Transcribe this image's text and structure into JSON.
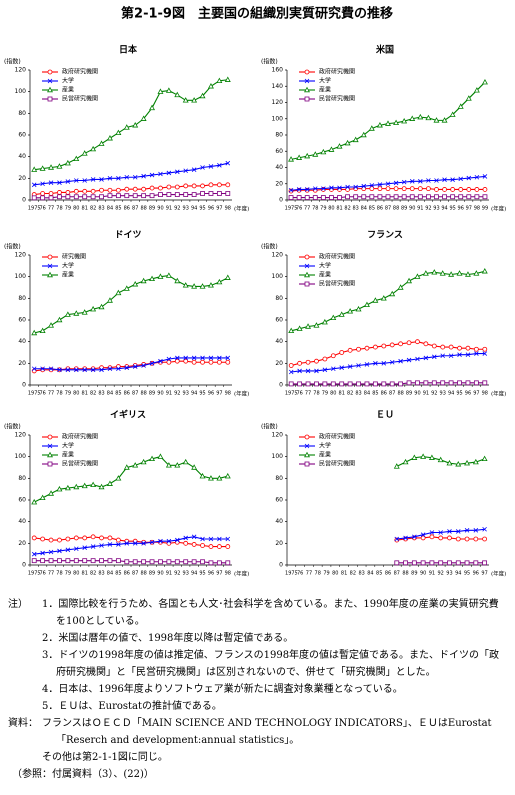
{
  "title": "第2-1-9図　主要国の組織別実質研究費の推移",
  "chart_data": [
    {
      "type": "line",
      "title": "日本",
      "y_label": "(指数)",
      "x_label": "(年度)",
      "categories": [
        "1975",
        "76",
        "77",
        "78",
        "79",
        "80",
        "81",
        "82",
        "83",
        "84",
        "85",
        "86",
        "87",
        "88",
        "89",
        "90",
        "91",
        "92",
        "93",
        "94",
        "95",
        "96",
        "97",
        "98"
      ],
      "ylim": [
        0,
        120
      ],
      "yticks": [
        0,
        20,
        40,
        60,
        80,
        100,
        120
      ],
      "series": [
        {
          "name": "政府研究機関",
          "color": "#ff0000",
          "marker": "circle",
          "values": [
            5,
            6,
            6,
            7,
            7,
            8,
            8,
            8,
            9,
            9,
            9,
            10,
            10,
            10,
            11,
            11,
            12,
            12,
            13,
            13,
            13,
            14,
            14,
            14
          ]
        },
        {
          "name": "大学",
          "color": "#0000ff",
          "marker": "cross",
          "values": [
            14,
            15,
            16,
            16,
            17,
            18,
            18,
            19,
            19,
            20,
            20,
            21,
            21,
            22,
            23,
            24,
            25,
            26,
            27,
            28,
            30,
            31,
            32,
            34
          ]
        },
        {
          "name": "産業",
          "color": "#008000",
          "marker": "triangle",
          "values": [
            28,
            29,
            30,
            31,
            34,
            38,
            43,
            47,
            52,
            57,
            62,
            67,
            69,
            75,
            85,
            100,
            101,
            97,
            92,
            92,
            96,
            105,
            110,
            111
          ]
        },
        {
          "name": "民営研究機関",
          "color": "#800080",
          "marker": "square",
          "values": [
            2,
            2,
            2,
            3,
            3,
            3,
            3,
            3,
            3,
            4,
            4,
            4,
            4,
            4,
            4,
            5,
            5,
            5,
            5,
            5,
            6,
            6,
            6,
            6
          ]
        }
      ]
    },
    {
      "type": "line",
      "title": "米国",
      "y_label": "(指数)",
      "x_label": "(年度)",
      "categories": [
        "1975",
        "76",
        "77",
        "78",
        "79",
        "80",
        "81",
        "82",
        "83",
        "84",
        "85",
        "86",
        "87",
        "88",
        "89",
        "90",
        "91",
        "92",
        "93",
        "94",
        "95",
        "96",
        "97",
        "98",
        "99"
      ],
      "ylim": [
        0,
        160
      ],
      "yticks": [
        0,
        20,
        40,
        60,
        80,
        100,
        120,
        140,
        160
      ],
      "series": [
        {
          "name": "政府研究機関",
          "color": "#ff0000",
          "marker": "circle",
          "values": [
            11,
            12,
            12,
            12,
            13,
            13,
            13,
            13,
            14,
            14,
            14,
            14,
            14,
            14,
            14,
            14,
            14,
            14,
            13,
            13,
            13,
            13,
            13,
            13,
            13
          ]
        },
        {
          "name": "大学",
          "color": "#0000ff",
          "marker": "cross",
          "values": [
            12,
            13,
            13,
            14,
            14,
            15,
            15,
            16,
            16,
            17,
            18,
            19,
            20,
            21,
            22,
            23,
            23,
            24,
            24,
            25,
            25,
            26,
            27,
            28,
            29
          ]
        },
        {
          "name": "産業",
          "color": "#008000",
          "marker": "triangle",
          "values": [
            50,
            52,
            54,
            56,
            59,
            62,
            66,
            70,
            74,
            80,
            88,
            92,
            94,
            95,
            97,
            100,
            102,
            101,
            98,
            98,
            105,
            115,
            125,
            135,
            145
          ]
        },
        {
          "name": "民営研究機関",
          "color": "#800080",
          "marker": "square",
          "values": [
            3,
            3,
            3,
            3,
            3,
            3,
            3,
            4,
            4,
            4,
            4,
            4,
            4,
            4,
            4,
            4,
            4,
            4,
            4,
            4,
            4,
            4,
            4,
            4,
            4
          ]
        }
      ]
    },
    {
      "type": "line",
      "title": "ドイツ",
      "y_label": "(指数)",
      "x_label": "(年度)",
      "categories": [
        "1975",
        "76",
        "77",
        "78",
        "79",
        "80",
        "81",
        "82",
        "83",
        "84",
        "85",
        "86",
        "87",
        "88",
        "89",
        "90",
        "91",
        "92",
        "93",
        "94",
        "95",
        "96",
        "97",
        "98"
      ],
      "ylim": [
        0,
        120
      ],
      "yticks": [
        0,
        20,
        40,
        60,
        80,
        100,
        120
      ],
      "series": [
        {
          "name": "研究機関",
          "color": "#ff0000",
          "marker": "circle",
          "values": [
            13,
            14,
            14,
            14,
            15,
            15,
            15,
            15,
            16,
            16,
            17,
            17,
            18,
            19,
            20,
            21,
            21,
            22,
            22,
            21,
            21,
            21,
            21,
            21
          ]
        },
        {
          "name": "大学",
          "color": "#0000ff",
          "marker": "cross",
          "values": [
            15,
            15,
            15,
            14,
            14,
            14,
            14,
            14,
            14,
            15,
            15,
            16,
            17,
            18,
            20,
            22,
            24,
            25,
            25,
            25,
            25,
            25,
            25,
            25
          ]
        },
        {
          "name": "産業",
          "color": "#008000",
          "marker": "triangle",
          "values": [
            48,
            50,
            55,
            60,
            65,
            66,
            67,
            70,
            72,
            78,
            85,
            89,
            93,
            96,
            98,
            100,
            101,
            96,
            92,
            91,
            91,
            92,
            95,
            99
          ]
        }
      ]
    },
    {
      "type": "line",
      "title": "フランス",
      "y_label": "(指数)",
      "x_label": "(年度)",
      "categories": [
        "1975",
        "76",
        "77",
        "78",
        "79",
        "80",
        "81",
        "82",
        "83",
        "84",
        "85",
        "86",
        "87",
        "88",
        "89",
        "90",
        "91",
        "92",
        "93",
        "94",
        "95",
        "96",
        "97",
        "98"
      ],
      "ylim": [
        0,
        120
      ],
      "yticks": [
        0,
        20,
        40,
        60,
        80,
        100,
        120
      ],
      "series": [
        {
          "name": "政府研究機関",
          "color": "#ff0000",
          "marker": "circle",
          "values": [
            18,
            20,
            21,
            22,
            24,
            27,
            30,
            32,
            33,
            34,
            35,
            36,
            37,
            38,
            39,
            40,
            38,
            36,
            35,
            35,
            34,
            34,
            33,
            33
          ]
        },
        {
          "name": "大学",
          "color": "#0000ff",
          "marker": "cross",
          "values": [
            12,
            13,
            13,
            13,
            14,
            15,
            16,
            17,
            18,
            19,
            20,
            20,
            21,
            22,
            23,
            24,
            25,
            26,
            27,
            27,
            28,
            28,
            29,
            29
          ]
        },
        {
          "name": "産業",
          "color": "#008000",
          "marker": "triangle",
          "values": [
            50,
            52,
            54,
            55,
            58,
            62,
            65,
            68,
            70,
            74,
            78,
            80,
            84,
            90,
            96,
            100,
            103,
            104,
            103,
            102,
            103,
            102,
            103,
            105
          ]
        },
        {
          "name": "民営研究機関",
          "color": "#800080",
          "marker": "square",
          "values": [
            1,
            1,
            1,
            1,
            1,
            1,
            1,
            1,
            1,
            1,
            1,
            1,
            1,
            1,
            2,
            2,
            2,
            2,
            2,
            2,
            2,
            2,
            2,
            2
          ]
        }
      ]
    },
    {
      "type": "line",
      "title": "イギリス",
      "y_label": "(指数)",
      "x_label": "(年度)",
      "categories": [
        "1975",
        "76",
        "77",
        "78",
        "79",
        "80",
        "81",
        "82",
        "83",
        "84",
        "85",
        "86",
        "87",
        "88",
        "89",
        "90",
        "91",
        "92",
        "93",
        "94",
        "95",
        "96",
        "97",
        "98"
      ],
      "ylim": [
        0,
        120
      ],
      "yticks": [
        0,
        20,
        40,
        60,
        80,
        100,
        120
      ],
      "series": [
        {
          "name": "政府研究機関",
          "color": "#ff0000",
          "marker": "circle",
          "values": [
            25,
            24,
            23,
            23,
            24,
            25,
            25,
            26,
            25,
            25,
            23,
            22,
            22,
            21,
            21,
            21,
            20,
            21,
            20,
            19,
            18,
            17,
            17,
            17
          ]
        },
        {
          "name": "大学",
          "color": "#0000ff",
          "marker": "cross",
          "values": [
            10,
            11,
            12,
            13,
            14,
            15,
            16,
            17,
            18,
            19,
            19,
            20,
            20,
            20,
            21,
            22,
            22,
            23,
            25,
            26,
            24,
            24,
            24,
            24
          ]
        },
        {
          "name": "産業",
          "color": "#008000",
          "marker": "triangle",
          "values": [
            58,
            62,
            66,
            70,
            71,
            72,
            73,
            74,
            72,
            75,
            80,
            90,
            92,
            95,
            98,
            100,
            92,
            92,
            95,
            90,
            82,
            80,
            80,
            82
          ]
        },
        {
          "name": "民営研究機関",
          "color": "#800080",
          "marker": "square",
          "values": [
            4,
            4,
            4,
            4,
            4,
            4,
            4,
            4,
            4,
            4,
            4,
            3,
            3,
            3,
            3,
            3,
            3,
            3,
            3,
            3,
            3,
            2,
            2,
            2
          ]
        }
      ]
    },
    {
      "type": "line",
      "title": "ＥＵ",
      "y_label": "(指数)",
      "x_label": "(年度)",
      "categories": [
        "1975",
        "76",
        "77",
        "78",
        "79",
        "80",
        "81",
        "82",
        "83",
        "84",
        "85",
        "86",
        "87",
        "88",
        "89",
        "90",
        "91",
        "92",
        "93",
        "94",
        "95",
        "96",
        "97"
      ],
      "ylim": [
        0,
        120
      ],
      "yticks": [
        0,
        20,
        40,
        60,
        80,
        100,
        120
      ],
      "series": [
        {
          "name": "政府研究機関",
          "color": "#ff0000",
          "marker": "circle",
          "values": [
            null,
            null,
            null,
            null,
            null,
            null,
            null,
            null,
            null,
            null,
            null,
            null,
            23,
            24,
            25,
            25,
            26,
            25,
            25,
            24,
            24,
            24,
            24
          ]
        },
        {
          "name": "大学",
          "color": "#0000ff",
          "marker": "cross",
          "values": [
            null,
            null,
            null,
            null,
            null,
            null,
            null,
            null,
            null,
            null,
            null,
            null,
            24,
            25,
            26,
            28,
            30,
            30,
            31,
            31,
            32,
            32,
            33
          ]
        },
        {
          "name": "産業",
          "color": "#008000",
          "marker": "triangle",
          "values": [
            null,
            null,
            null,
            null,
            null,
            null,
            null,
            null,
            null,
            null,
            null,
            null,
            91,
            95,
            99,
            100,
            99,
            97,
            94,
            93,
            94,
            95,
            98
          ]
        },
        {
          "name": "民営研究機関",
          "color": "#800080",
          "marker": "square",
          "values": [
            null,
            null,
            null,
            null,
            null,
            null,
            null,
            null,
            null,
            null,
            null,
            null,
            2,
            2,
            2,
            2,
            2,
            2,
            2,
            2,
            2,
            2,
            2
          ]
        }
      ]
    }
  ],
  "notes": {
    "label": "注）",
    "items": [
      "1．国際比較を行うため、各国とも人文･社会科学を含めている。また、1990年度の産業の実質研究費を100としている。",
      "2．米国は暦年の値で、1998年度以降は暫定値である。",
      "3．ドイツの1998年度の値は推定値、フランスの1998年度の値は暫定値である。また、ドイツの「政府研究機関」と「民営研究機関」は区別されないので、併せて「研究機関」とした。",
      "4．日本は、1996年度よりソフトウェア業が新たに調査対象業種となっている。",
      "5．ＥＵは、Eurostatの推計値である。"
    ]
  },
  "source": {
    "label": "資料：",
    "lines": [
      "フランスはＯＥＣＤ「MAIN SCIENCE AND TECHNOLOGY INDICATORS」、ＥＵはEurostat「Reserch and development:annual statistics」。",
      "その他は第2-1-1図に同じ。"
    ]
  },
  "reference": "（参照：付属資料（3）、(22)）"
}
